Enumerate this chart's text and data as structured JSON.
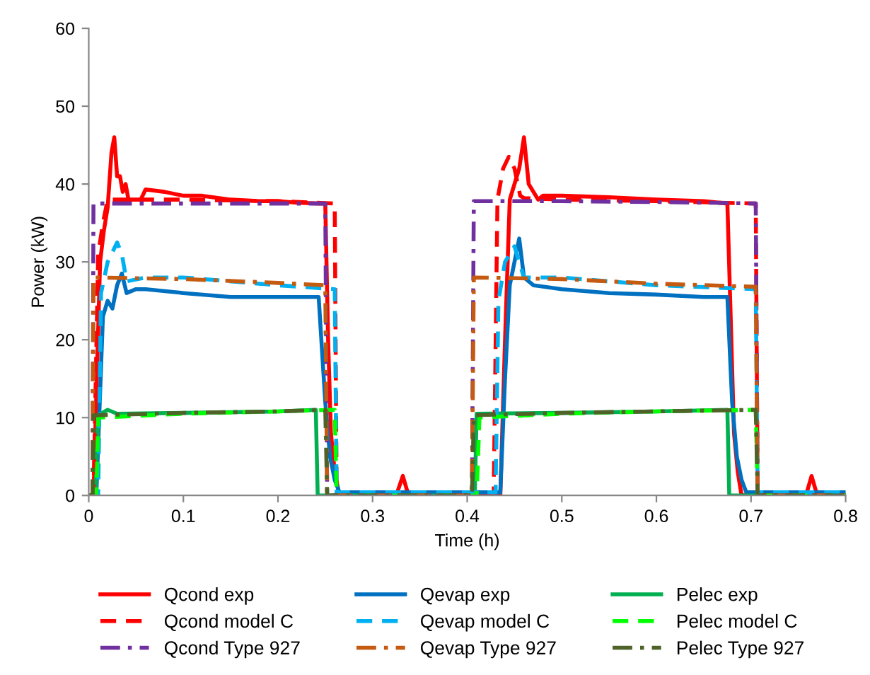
{
  "chart_data": {
    "type": "line",
    "xlabel": "Time (h)",
    "ylabel": "Power (kW)",
    "xlim": [
      0,
      0.8
    ],
    "xticks": [
      0,
      0.1,
      0.2,
      0.3,
      0.4,
      0.5,
      0.6,
      0.7,
      0.8
    ],
    "ylim": [
      0,
      60
    ],
    "yticks": [
      0,
      10,
      20,
      30,
      40,
      50,
      60
    ],
    "grid": false,
    "legend": "bottom",
    "marker": "none",
    "series": [
      {
        "name": "Qcond exp",
        "color": "#ff0000",
        "line_style": "solid",
        "x": [
          0,
          0.005,
          0.012,
          0.016,
          0.02,
          0.024,
          0.027,
          0.03,
          0.033,
          0.036,
          0.039,
          0.042,
          0.046,
          0.05,
          0.055,
          0.06,
          0.08,
          0.1,
          0.12,
          0.15,
          0.18,
          0.2,
          0.22,
          0.245,
          0.25,
          0.253,
          0.256,
          0.26,
          0.265,
          0.3,
          0.325,
          0.332,
          0.338,
          0.4,
          0.435,
          0.44,
          0.445,
          0.45,
          0.455,
          0.46,
          0.465,
          0.47,
          0.475,
          0.48,
          0.5,
          0.55,
          0.6,
          0.65,
          0.675,
          0.678,
          0.682,
          0.686,
          0.69,
          0.72,
          0.758,
          0.764,
          0.77,
          0.8
        ],
        "values": [
          0,
          0,
          30,
          34,
          37,
          44,
          46,
          41,
          41,
          39,
          40,
          38,
          38,
          38,
          38,
          39.3,
          39,
          38.5,
          38.5,
          38,
          37.8,
          37.8,
          37.6,
          37.5,
          37.5,
          20,
          8,
          3,
          0,
          0.3,
          0,
          2.5,
          0,
          0,
          0,
          20,
          38,
          40,
          42,
          46,
          40,
          39,
          38,
          38.5,
          38.5,
          38.3,
          38,
          37.8,
          37.5,
          25,
          8,
          3,
          0,
          0.3,
          0,
          2.5,
          0,
          0
        ]
      },
      {
        "name": "Qevap exp",
        "color": "#0070c0",
        "line_style": "solid",
        "x": [
          0,
          0.008,
          0.015,
          0.02,
          0.025,
          0.03,
          0.035,
          0.04,
          0.05,
          0.06,
          0.1,
          0.15,
          0.2,
          0.243,
          0.25,
          0.255,
          0.26,
          0.265,
          0.3,
          0.4,
          0.435,
          0.44,
          0.445,
          0.45,
          0.455,
          0.46,
          0.47,
          0.5,
          0.55,
          0.6,
          0.65,
          0.675,
          0.68,
          0.685,
          0.69,
          0.695,
          0.8
        ],
        "values": [
          0,
          0,
          23,
          25,
          24,
          27,
          28.5,
          26,
          26.5,
          26.5,
          26,
          25.5,
          25.5,
          25.5,
          12,
          5,
          2,
          0.4,
          0.4,
          0.4,
          0.4,
          15,
          27,
          30,
          33,
          28,
          27,
          26.5,
          26,
          25.8,
          25.5,
          25.5,
          12,
          5,
          2,
          0.4,
          0.4
        ]
      },
      {
        "name": "Pelec exp",
        "color": "#00b050",
        "line_style": "solid",
        "x": [
          0,
          0.007,
          0.01,
          0.02,
          0.03,
          0.1,
          0.2,
          0.24,
          0.242,
          0.3,
          0.408,
          0.41,
          0.5,
          0.6,
          0.675,
          0.677,
          0.8
        ],
        "values": [
          0,
          0,
          10.3,
          11,
          10.5,
          10.6,
          10.8,
          11,
          0,
          0,
          0,
          10.5,
          10.6,
          10.8,
          11,
          0,
          0
        ]
      },
      {
        "name": "Qcond model C",
        "color": "#ff0000",
        "line_style": "dashed",
        "x": [
          0,
          0.005,
          0.01,
          0.015,
          0.02,
          0.1,
          0.2,
          0.26,
          0.262,
          0.4,
          0.428,
          0.432,
          0.438,
          0.444,
          0.45,
          0.456,
          0.46,
          0.5,
          0.6,
          0.705,
          0.707,
          0.8
        ],
        "values": [
          0,
          0,
          31,
          35,
          38,
          38,
          37.8,
          37.5,
          0,
          0,
          0,
          38,
          42,
          43.5,
          42,
          38.5,
          38.2,
          38,
          37.8,
          37.5,
          0,
          0
        ]
      },
      {
        "name": "Qevap model C",
        "color": "#00b0f0",
        "line_style": "dashed",
        "x": [
          0,
          0.01,
          0.013,
          0.02,
          0.03,
          0.035,
          0.04,
          0.06,
          0.1,
          0.2,
          0.26,
          0.262,
          0.4,
          0.43,
          0.433,
          0.44,
          0.45,
          0.46,
          0.5,
          0.6,
          0.705,
          0.707,
          0.8
        ],
        "values": [
          0,
          0,
          26,
          30,
          32.5,
          31,
          27.5,
          28,
          28,
          27,
          26.5,
          0.4,
          0.4,
          0.4,
          25,
          30,
          32,
          28,
          28,
          27,
          26.5,
          0.4,
          0.4
        ]
      },
      {
        "name": "Pelec model C",
        "color": "#00ff00",
        "line_style": "dashed",
        "x": [
          0,
          0.008,
          0.01,
          0.1,
          0.2,
          0.26,
          0.262,
          0.41,
          0.413,
          0.5,
          0.6,
          0.705,
          0.707,
          0.8
        ],
        "values": [
          0,
          0,
          10,
          10.5,
          10.8,
          11,
          0,
          0,
          10,
          10.5,
          10.8,
          11,
          0,
          0
        ]
      },
      {
        "name": "Qcond Type 927",
        "color": "#7030a0",
        "line_style": "dashdot",
        "x": [
          0,
          0.004,
          0.005,
          0.1,
          0.2,
          0.25,
          0.252,
          0.405,
          0.407,
          0.5,
          0.6,
          0.705,
          0.707,
          0.8
        ],
        "values": [
          0,
          0,
          37.5,
          37.5,
          37.5,
          37.5,
          0,
          0,
          37.8,
          37.8,
          37.7,
          37.5,
          0,
          0
        ]
      },
      {
        "name": "Qevap Type 927",
        "color": "#c55a11",
        "line_style": "dashdot",
        "x": [
          0,
          0.004,
          0.005,
          0.1,
          0.2,
          0.25,
          0.252,
          0.405,
          0.407,
          0.5,
          0.6,
          0.705,
          0.707,
          0.8
        ],
        "values": [
          0,
          0,
          28,
          27.8,
          27.3,
          27,
          0,
          0,
          28,
          27.8,
          27.2,
          26.8,
          0,
          0
        ]
      },
      {
        "name": "Pelec Type 927",
        "color": "#4f6228",
        "line_style": "dashdot",
        "x": [
          0,
          0.004,
          0.005,
          0.1,
          0.2,
          0.25,
          0.252,
          0.405,
          0.407,
          0.5,
          0.6,
          0.705,
          0.707,
          0.8
        ],
        "values": [
          0,
          0,
          10.3,
          10.6,
          10.8,
          11,
          0,
          0,
          10.3,
          10.6,
          10.8,
          11,
          0,
          0
        ]
      }
    ]
  }
}
